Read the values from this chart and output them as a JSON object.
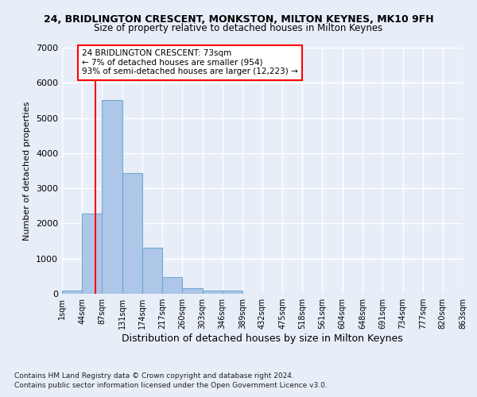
{
  "title": "24, BRIDLINGTON CRESCENT, MONKSTON, MILTON KEYNES, MK10 9FH",
  "subtitle": "Size of property relative to detached houses in Milton Keynes",
  "xlabel": "Distribution of detached houses by size in Milton Keynes",
  "ylabel": "Number of detached properties",
  "footnote1": "Contains HM Land Registry data © Crown copyright and database right 2024.",
  "footnote2": "Contains public sector information licensed under the Open Government Licence v3.0.",
  "annotation_line1": "24 BRIDLINGTON CRESCENT: 73sqm",
  "annotation_line2": "← 7% of detached houses are smaller (954)",
  "annotation_line3": "93% of semi-detached houses are larger (12,223) →",
  "bar_color": "#aec6e8",
  "bar_edge_color": "#6faad4",
  "red_line_x": 73,
  "bin_edges": [
    1,
    44,
    87,
    131,
    174,
    217,
    260,
    303,
    346,
    389,
    432,
    475,
    518,
    561,
    604,
    648,
    691,
    734,
    777,
    820,
    863
  ],
  "bar_heights": [
    100,
    2270,
    5500,
    3440,
    1300,
    480,
    160,
    80,
    80,
    0,
    0,
    0,
    0,
    0,
    0,
    0,
    0,
    0,
    0,
    0
  ],
  "ylim": [
    0,
    7000
  ],
  "yticks": [
    0,
    1000,
    2000,
    3000,
    4000,
    5000,
    6000,
    7000
  ],
  "background_color": "#e8eef8",
  "grid_color": "#ffffff",
  "figwidth": 6.0,
  "figheight": 5.0,
  "dpi": 100
}
